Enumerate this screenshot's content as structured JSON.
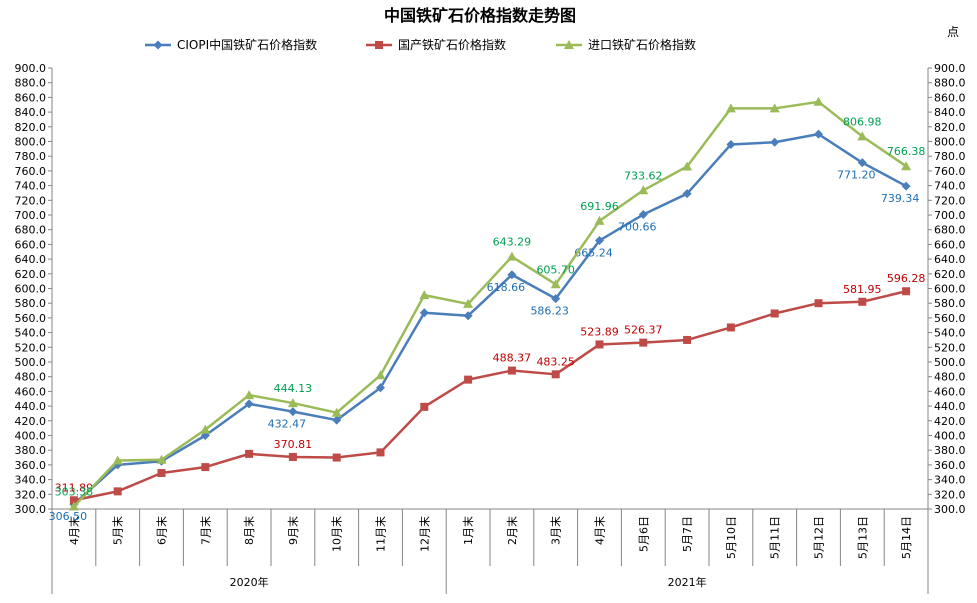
{
  "chart_data": {
    "type": "line",
    "title": "中国铁矿石价格指数走势图",
    "unit_label": "点",
    "ylim": [
      300,
      900
    ],
    "ytick_step": 20,
    "grid": false,
    "legend_position": "top",
    "categories": [
      "4月末",
      "5月末",
      "6月末",
      "7月末",
      "8月末",
      "9月末",
      "10月末",
      "11月末",
      "12月末",
      "1月末",
      "2月末",
      "3月末",
      "4月末",
      "5月6日",
      "5月7日",
      "5月10日",
      "5月11日",
      "5月12日",
      "5月13日",
      "5月14日"
    ],
    "year_groups": [
      {
        "label": "2020年",
        "count": 9
      },
      {
        "label": "2021年",
        "count": 11
      }
    ],
    "series": [
      {
        "name": "CIOPI中国铁矿石价格指数",
        "color": "#4a7ebb",
        "marker": "diamond",
        "label_color": "#1f6fb2",
        "values": [
          306.5,
          360,
          365,
          400,
          443,
          432.47,
          421,
          465,
          567,
          563,
          618.66,
          586.23,
          665.24,
          700.66,
          729,
          796,
          799,
          810,
          771.2,
          739.34
        ],
        "labels": {
          "0": "306.50",
          "5": "432.47",
          "10": "618.66",
          "11": "586.23",
          "12": "665.24",
          "13": "700.66",
          "18": "771.20",
          "19": "739.34"
        }
      },
      {
        "name": "国产铁矿石价格指数",
        "color": "#be4b48",
        "marker": "square",
        "label_color": "#c00000",
        "values": [
          311.89,
          324,
          349,
          357,
          375,
          370.81,
          370,
          377,
          439,
          476,
          488.37,
          483.25,
          523.89,
          526.37,
          530,
          547,
          566,
          580,
          581.95,
          596.28
        ],
        "labels": {
          "0": "311.89",
          "5": "370.81",
          "10": "488.37",
          "11": "483.25",
          "12": "523.89",
          "13": "526.37",
          "18": "581.95",
          "19": "596.28"
        }
      },
      {
        "name": "进口铁矿石价格指数",
        "color": "#9bbb59",
        "marker": "triangle",
        "label_color": "#00a050",
        "values": [
          303.38,
          366,
          367,
          408,
          455,
          444.13,
          431,
          482,
          591,
          579,
          643.29,
          605.7,
          691.96,
          733.62,
          766,
          845,
          845,
          854,
          806.98,
          766.38
        ],
        "labels": {
          "0": "303.38",
          "5": "444.13",
          "10": "643.29",
          "11": "605.70",
          "12": "691.96",
          "13": "733.62",
          "18": "806.98",
          "19": "766.38"
        }
      }
    ]
  }
}
